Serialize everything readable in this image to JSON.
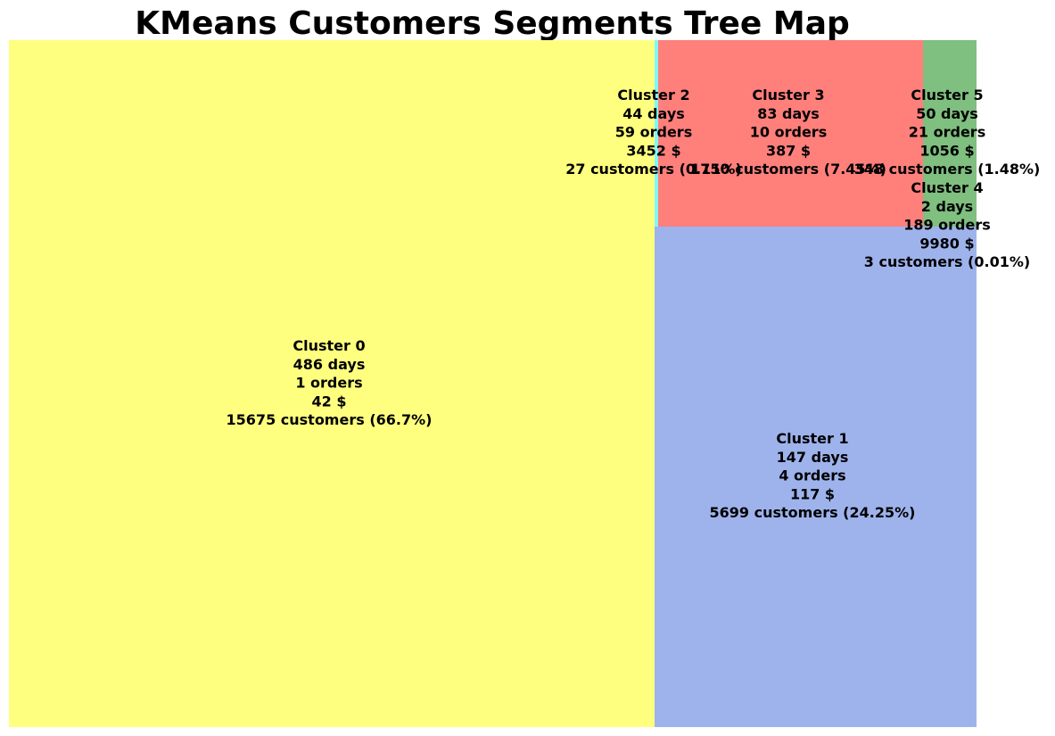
{
  "chart_data": {
    "type": "treemap",
    "title": "KMeans Customers Segments Tree Map",
    "items": [
      {
        "name": "Cluster 0",
        "days": "486 days",
        "orders": "1 orders",
        "amount": "42 $",
        "customers": "15675 customers (66.7%)",
        "count": 15675,
        "color": "#ffff7f"
      },
      {
        "name": "Cluster 1",
        "days": "147 days",
        "orders": "4 orders",
        "amount": "117 $",
        "customers": "5699 customers (24.25%)",
        "count": 5699,
        "color": "#9eb3ec"
      },
      {
        "name": "Cluster 2",
        "days": "44 days",
        "orders": "59 orders",
        "amount": "3452 $",
        "customers": "27 customers (0.11%)",
        "count": 27,
        "color": "#7ff8f8"
      },
      {
        "name": "Cluster 3",
        "days": "83 days",
        "orders": "10 orders",
        "amount": "387 $",
        "customers": "1750 customers (7.45%)",
        "count": 1750,
        "color": "#ff7f7b"
      },
      {
        "name": "Cluster 4",
        "days": "2 days",
        "orders": "189 orders",
        "amount": "9980 $",
        "customers": "3 customers (0.01%)",
        "count": 3,
        "color": "#7fbf7f"
      },
      {
        "name": "Cluster 5",
        "days": "50 days",
        "orders": "21 orders",
        "amount": "1056 $",
        "customers": "348 customers (1.48%)",
        "count": 348,
        "color": "#7fbf7f"
      }
    ]
  }
}
